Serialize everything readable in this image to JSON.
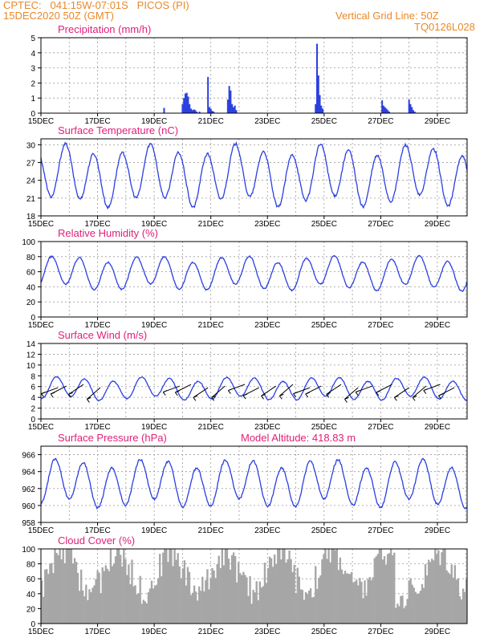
{
  "header": {
    "line1_left": "CPTEC:   041:15W-07:01S   PICOS (PI)",
    "line2_left": "15DEC2020 50Z (GMT)",
    "line1_right": "Vertical Grid Line: 50Z",
    "line2_right": "TQ0126L028"
  },
  "colors": {
    "line": "#2b3fe0",
    "title": "#e0207a",
    "header": "#e8892a",
    "cloud": "#a6a6a6",
    "arrow": "#000000"
  },
  "x_ticks": [
    "15DEC",
    "17DEC",
    "19DEC",
    "21DEC",
    "23DEC",
    "25DEC",
    "27DEC",
    "29DEC"
  ],
  "chart_data": [
    {
      "type": "bar",
      "title": "Precipitation (mm/h)",
      "ylim": [
        0,
        5
      ],
      "yticks": [
        "0",
        "1",
        "2",
        "3",
        "4",
        "5"
      ],
      "x_unit": "days since 15DEC 00Z",
      "bars": [
        [
          4.35,
          0.35
        ],
        [
          5.0,
          0.6
        ],
        [
          5.05,
          1.0
        ],
        [
          5.1,
          1.3
        ],
        [
          5.15,
          1.35
        ],
        [
          5.2,
          1.1
        ],
        [
          5.25,
          0.6
        ],
        [
          5.3,
          0.3
        ],
        [
          5.35,
          0.2
        ],
        [
          5.4,
          0.25
        ],
        [
          5.45,
          0.2
        ],
        [
          5.5,
          0.1
        ],
        [
          5.6,
          0.1
        ],
        [
          5.9,
          2.4
        ],
        [
          5.95,
          0.4
        ],
        [
          6.0,
          0.3
        ],
        [
          6.05,
          0.15
        ],
        [
          6.1,
          0.1
        ],
        [
          6.6,
          0.9
        ],
        [
          6.65,
          1.8
        ],
        [
          6.7,
          1.5
        ],
        [
          6.75,
          0.6
        ],
        [
          6.8,
          0.4
        ],
        [
          6.85,
          0.5
        ],
        [
          6.9,
          0.2
        ],
        [
          9.7,
          0.6
        ],
        [
          9.75,
          4.6
        ],
        [
          9.8,
          2.5
        ],
        [
          9.85,
          1.2
        ],
        [
          9.9,
          0.5
        ],
        [
          9.95,
          0.3
        ],
        [
          12.05,
          0.85
        ],
        [
          12.1,
          0.5
        ],
        [
          12.15,
          0.4
        ],
        [
          12.2,
          0.3
        ],
        [
          12.25,
          0.2
        ],
        [
          12.3,
          0.1
        ],
        [
          13.0,
          0.9
        ],
        [
          13.05,
          0.6
        ],
        [
          13.1,
          0.4
        ],
        [
          13.15,
          0.2
        ],
        [
          13.2,
          0.1
        ]
      ]
    },
    {
      "type": "line",
      "title": "Surface Temperature (nC)",
      "ylim": [
        18,
        31
      ],
      "yticks": [
        "18",
        "21",
        "24",
        "27",
        "30"
      ],
      "series": [
        {
          "name": "",
          "mean": 24.8,
          "amplitude": 4.3,
          "phase_day": 0.62
        }
      ]
    },
    {
      "type": "line",
      "title": "Relative Humidity (%)",
      "ylim": [
        0,
        100
      ],
      "yticks": [
        "0",
        "20",
        "40",
        "60",
        "80",
        "100"
      ],
      "series": [
        {
          "name": "",
          "mean": 58,
          "amplitude": 19,
          "phase_day": 0.12
        }
      ]
    },
    {
      "type": "line",
      "title": "Surface Wind (m/s)",
      "ylim": [
        0,
        14
      ],
      "yticks": [
        "0",
        "2",
        "4",
        "6",
        "8",
        "10",
        "12",
        "14"
      ],
      "series": [
        {
          "name": "",
          "mean": 5.6,
          "amplitude": 1.8,
          "phase_day": 0.3
        }
      ],
      "arrows_day": [
        0.6,
        0.9,
        1.5,
        2.1,
        4.9,
        5.3,
        5.9,
        6.5,
        7.2,
        7.7,
        8.3,
        8.9,
        9.5,
        9.9,
        10.6,
        11.2,
        11.7,
        12.4,
        13.0,
        13.6,
        14.1,
        14.6
      ]
    },
    {
      "type": "line",
      "title": "Surface Pressure (hPa)",
      "annotation": "Model Altitude: 418.83 m",
      "ylim": [
        958,
        967
      ],
      "yticks": [
        "958",
        "960",
        "962",
        "964",
        "966"
      ],
      "series": [
        {
          "name": "",
          "mean": 962.6,
          "amplitude": 2.4,
          "phase_day": 0.25
        }
      ]
    },
    {
      "type": "area",
      "title": "Cloud Cover (%)",
      "ylim": [
        0,
        100
      ],
      "yticks": [
        "0",
        "20",
        "40",
        "60",
        "80",
        "100"
      ]
    }
  ]
}
